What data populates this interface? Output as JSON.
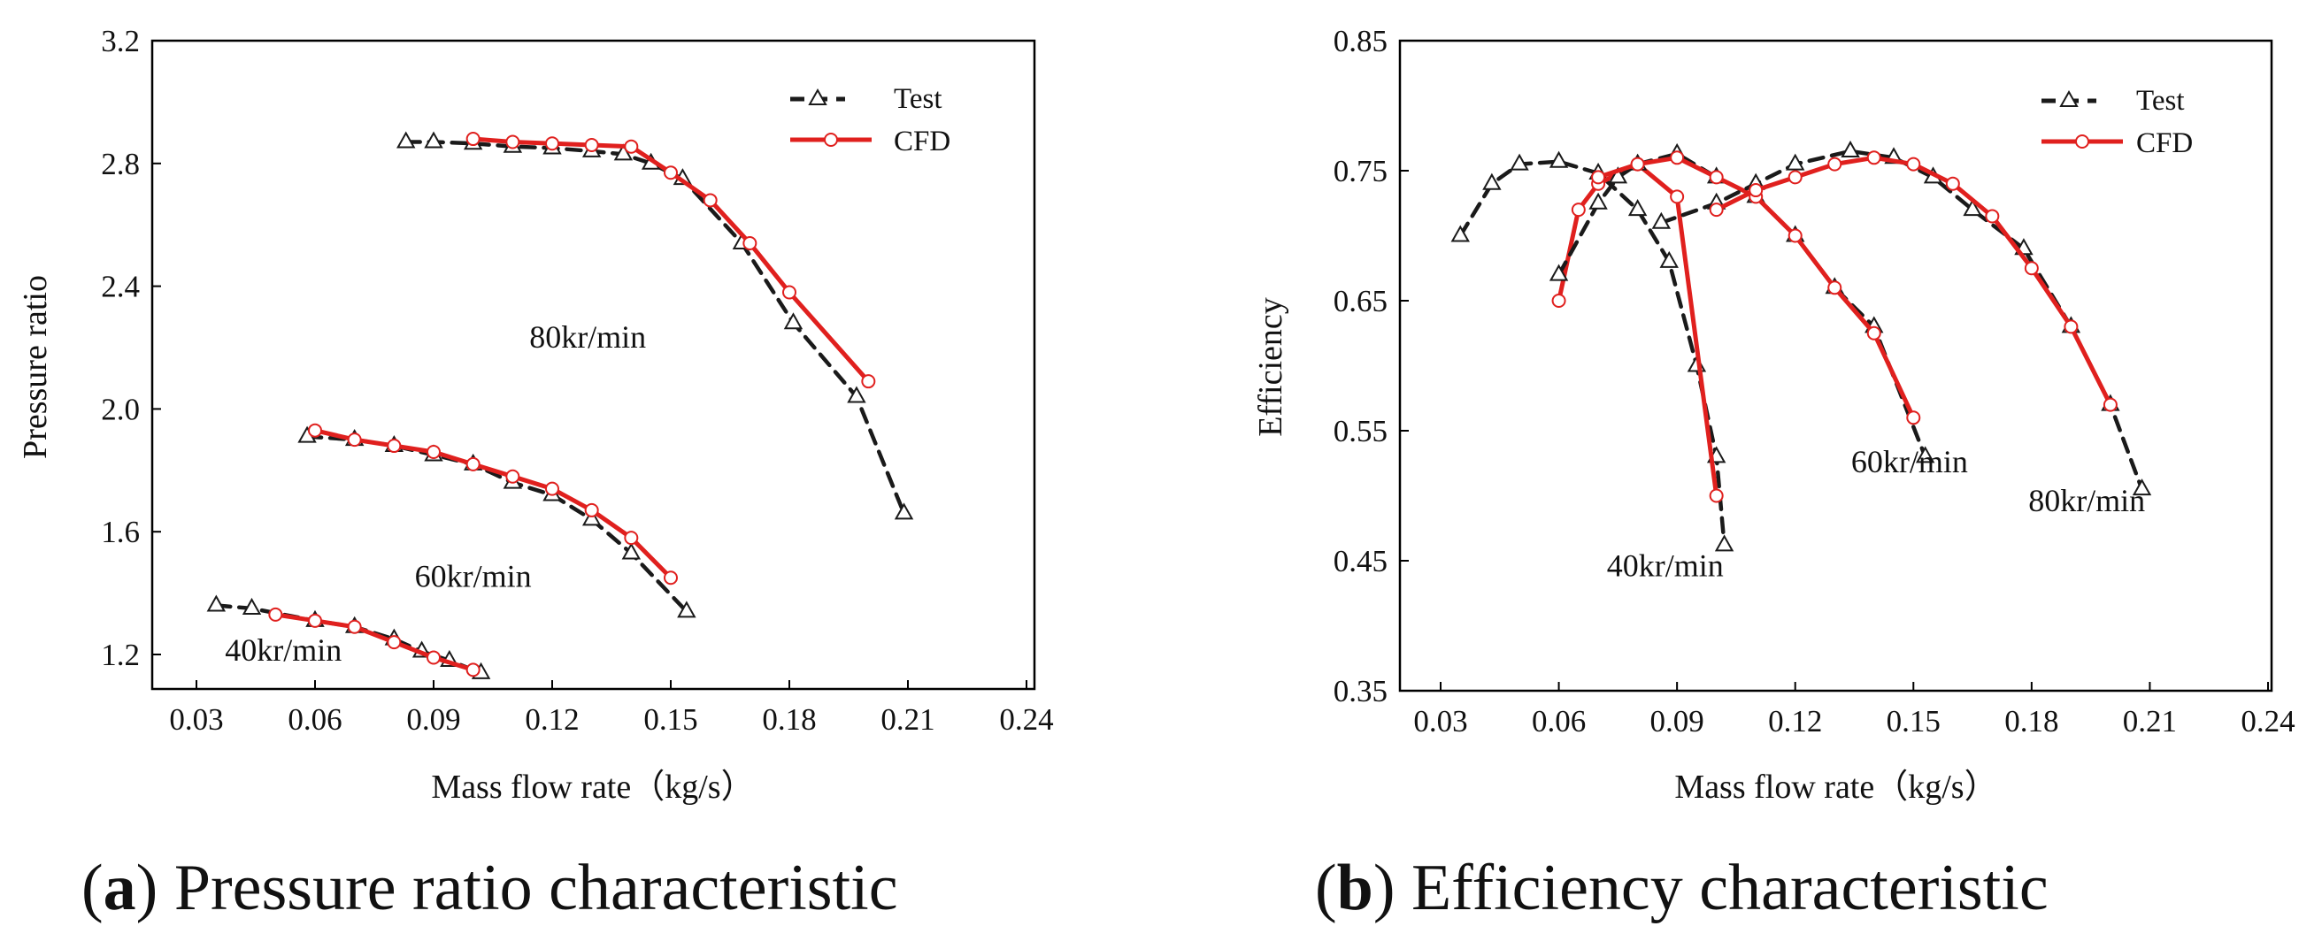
{
  "colors": {
    "test": "#1a1a1a",
    "cfd": "#e0201e",
    "frame": "#000000"
  },
  "captions": [
    {
      "open": "(",
      "letter": "a",
      "close": ")",
      "text": " Pressure ratio characteristic"
    },
    {
      "open": "(",
      "letter": "b",
      "close": ")",
      "text": " Efficiency characteristic"
    }
  ],
  "chart_data": [
    {
      "type": "line",
      "xlabel": "Mass flow rate（kg/s）",
      "ylabel": "Pressure ratio",
      "xlim": [
        0.02,
        0.24
      ],
      "ylim": [
        1.0,
        3.2
      ],
      "xticks": [
        0.03,
        0.06,
        0.09,
        0.12,
        0.15,
        0.18,
        0.21,
        0.24
      ],
      "xtick_labels": [
        "0.03",
        "0.06",
        "0.09",
        "0.12",
        "0.15",
        "0.18",
        "0.21",
        "0.24"
      ],
      "yticks": [
        1.2,
        1.6,
        2.0,
        2.4,
        2.8,
        3.2
      ],
      "ytick_labels": [
        "1.2",
        "1.6",
        "2.0",
        "2.4",
        "2.8",
        "3.2"
      ],
      "legend": {
        "position": "top-right",
        "entries": [
          "Test",
          "CFD"
        ]
      },
      "annotations": [
        {
          "text": "80kr/min",
          "x": 0.129,
          "y": 2.2
        },
        {
          "text": "60kr/min",
          "x": 0.1,
          "y": 1.42
        },
        {
          "text": "40kr/min",
          "x": 0.052,
          "y": 1.18
        }
      ],
      "series": [
        {
          "name": "Test",
          "style": "test",
          "x": [
            0.083,
            0.09,
            0.1,
            0.11,
            0.12,
            0.13,
            0.138,
            0.145,
            0.153,
            0.168,
            0.181,
            0.197,
            0.209
          ],
          "y": [
            2.87,
            2.87,
            2.865,
            2.855,
            2.85,
            2.84,
            2.83,
            2.8,
            2.75,
            2.54,
            2.28,
            2.04,
            1.66
          ]
        },
        {
          "name": "CFD",
          "style": "cfd",
          "x": [
            0.1,
            0.11,
            0.12,
            0.13,
            0.14,
            0.15,
            0.16,
            0.17,
            0.18,
            0.2
          ],
          "y": [
            2.88,
            2.87,
            2.865,
            2.86,
            2.855,
            2.77,
            2.68,
            2.54,
            2.38,
            2.09
          ]
        },
        {
          "name": "Test",
          "style": "test",
          "x": [
            0.058,
            0.07,
            0.08,
            0.09,
            0.1,
            0.11,
            0.12,
            0.13,
            0.14,
            0.154
          ],
          "y": [
            1.91,
            1.9,
            1.88,
            1.85,
            1.82,
            1.76,
            1.72,
            1.64,
            1.53,
            1.34
          ]
        },
        {
          "name": "CFD",
          "style": "cfd",
          "x": [
            0.06,
            0.07,
            0.08,
            0.09,
            0.1,
            0.11,
            0.12,
            0.13,
            0.14,
            0.15
          ],
          "y": [
            1.93,
            1.9,
            1.88,
            1.86,
            1.82,
            1.78,
            1.74,
            1.67,
            1.58,
            1.45
          ]
        },
        {
          "name": "Test",
          "style": "test",
          "x": [
            0.035,
            0.044,
            0.06,
            0.07,
            0.08,
            0.087,
            0.094,
            0.102
          ],
          "y": [
            1.36,
            1.35,
            1.31,
            1.29,
            1.25,
            1.21,
            1.18,
            1.14
          ]
        },
        {
          "name": "CFD",
          "style": "cfd",
          "x": [
            0.05,
            0.06,
            0.07,
            0.08,
            0.09,
            0.1
          ],
          "y": [
            1.33,
            1.31,
            1.29,
            1.24,
            1.19,
            1.15
          ]
        }
      ]
    },
    {
      "type": "line",
      "xlabel": "Mass flow rate（kg/s）",
      "ylabel": "Efficiency",
      "xlim": [
        0.02,
        0.24
      ],
      "ylim": [
        0.35,
        0.85
      ],
      "xticks": [
        0.03,
        0.06,
        0.09,
        0.12,
        0.15,
        0.18,
        0.21,
        0.24
      ],
      "xtick_labels": [
        "0.03",
        "0.06",
        "0.09",
        "0.12",
        "0.15",
        "0.18",
        "0.21",
        "0.24"
      ],
      "yticks": [
        0.35,
        0.45,
        0.55,
        0.65,
        0.75,
        0.85
      ],
      "ytick_labels": [
        "0.35",
        "0.45",
        "0.55",
        "0.65",
        "0.75",
        "0.85"
      ],
      "legend": {
        "position": "top-right",
        "entries": [
          "Test",
          "CFD"
        ]
      },
      "annotations": [
        {
          "text": "40kr/min",
          "x": 0.087,
          "y": 0.438
        },
        {
          "text": "60kr/min",
          "x": 0.149,
          "y": 0.518
        },
        {
          "text": "80kr/min",
          "x": 0.194,
          "y": 0.488
        }
      ],
      "series": [
        {
          "name": "Test",
          "style": "test",
          "x": [
            0.035,
            0.043,
            0.05,
            0.06,
            0.07,
            0.08,
            0.088,
            0.095,
            0.1,
            0.102
          ],
          "y": [
            0.7,
            0.74,
            0.755,
            0.757,
            0.748,
            0.72,
            0.68,
            0.6,
            0.53,
            0.462
          ]
        },
        {
          "name": "CFD",
          "style": "cfd",
          "x": [
            0.06,
            0.065,
            0.07,
            0.08,
            0.09,
            0.1
          ],
          "y": [
            0.65,
            0.72,
            0.74,
            0.755,
            0.73,
            0.5
          ]
        },
        {
          "name": "Test",
          "style": "test",
          "x": [
            0.06,
            0.07,
            0.075,
            0.08,
            0.09,
            0.1,
            0.11,
            0.12,
            0.13,
            0.14,
            0.153
          ],
          "y": [
            0.67,
            0.725,
            0.745,
            0.755,
            0.763,
            0.745,
            0.73,
            0.7,
            0.66,
            0.63,
            0.53
          ]
        },
        {
          "name": "CFD",
          "style": "cfd",
          "x": [
            0.07,
            0.08,
            0.09,
            0.1,
            0.11,
            0.12,
            0.13,
            0.14,
            0.15
          ],
          "y": [
            0.745,
            0.755,
            0.76,
            0.745,
            0.73,
            0.7,
            0.66,
            0.625,
            0.56
          ]
        },
        {
          "name": "Test",
          "style": "test",
          "x": [
            0.086,
            0.1,
            0.11,
            0.12,
            0.134,
            0.145,
            0.155,
            0.165,
            0.178,
            0.19,
            0.2,
            0.208
          ],
          "y": [
            0.71,
            0.725,
            0.74,
            0.755,
            0.765,
            0.76,
            0.745,
            0.72,
            0.69,
            0.63,
            0.57,
            0.505
          ]
        },
        {
          "name": "CFD",
          "style": "cfd",
          "x": [
            0.1,
            0.11,
            0.12,
            0.13,
            0.14,
            0.15,
            0.16,
            0.17,
            0.18,
            0.19,
            0.2
          ],
          "y": [
            0.72,
            0.735,
            0.745,
            0.755,
            0.76,
            0.755,
            0.74,
            0.715,
            0.675,
            0.63,
            0.57
          ]
        }
      ]
    }
  ]
}
